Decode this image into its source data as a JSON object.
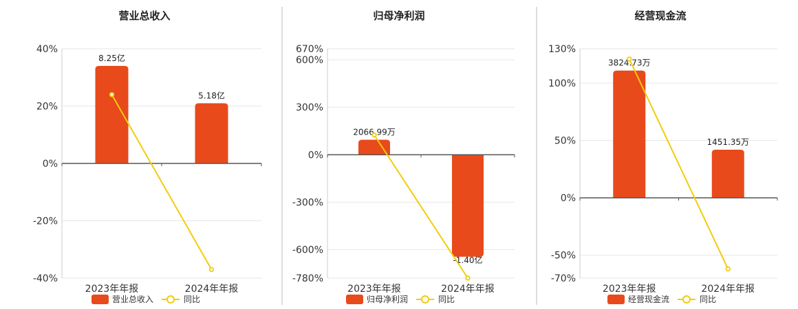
{
  "colors": {
    "bar": "#e84a1c",
    "line": "#f2cc0c",
    "grid": "#e6e6e6",
    "axis": "#555555",
    "text": "#333333",
    "divider": "#bbbbbb"
  },
  "chart_data": [
    {
      "type": "bar",
      "title": "营业总收入",
      "categories": [
        "2023年年报",
        "2024年年报"
      ],
      "series": [
        {
          "name": "营业总收入",
          "kind": "bar",
          "values": [
            34,
            21
          ],
          "labels": [
            "8.25亿",
            "5.18亿"
          ]
        },
        {
          "name": "同比",
          "kind": "line",
          "values": [
            24,
            -37
          ]
        }
      ],
      "yticks": [
        40,
        20,
        0,
        -20,
        -40
      ],
      "ytick_labels": [
        "40%",
        "20%",
        "0%",
        "-20%",
        "-40%"
      ],
      "ylim": [
        -40,
        40
      ],
      "grid": true,
      "legend": "bottom"
    },
    {
      "type": "bar",
      "title": "归母净利润",
      "categories": [
        "2023年年报",
        "2024年年报"
      ],
      "series": [
        {
          "name": "归母净利润",
          "kind": "bar",
          "values": [
            95,
            -645
          ],
          "labels": [
            "2066.99万",
            "-1.40亿"
          ]
        },
        {
          "name": "同比",
          "kind": "line",
          "values": [
            125,
            -780
          ]
        }
      ],
      "yticks": [
        670,
        600,
        300,
        0,
        -300,
        -600,
        -780
      ],
      "ytick_labels": [
        "670%",
        "600%",
        "300%",
        "0%",
        "-300%",
        "-600%",
        "-780%"
      ],
      "ylim": [
        -780,
        670
      ],
      "grid": true,
      "legend": "bottom"
    },
    {
      "type": "bar",
      "title": "经营现金流",
      "categories": [
        "2023年年报",
        "2024年年报"
      ],
      "series": [
        {
          "name": "经营现金流",
          "kind": "bar",
          "values": [
            111,
            42
          ],
          "labels": [
            "3824.73万",
            "1451.35万"
          ]
        },
        {
          "name": "同比",
          "kind": "line",
          "values": [
            121,
            -62
          ]
        }
      ],
      "yticks": [
        130,
        100,
        50,
        0,
        -50,
        -70
      ],
      "ytick_labels": [
        "130%",
        "100%",
        "50%",
        "0%",
        "-50%",
        "-70%"
      ],
      "ylim": [
        -70,
        130
      ],
      "grid": true,
      "legend": "bottom"
    }
  ]
}
